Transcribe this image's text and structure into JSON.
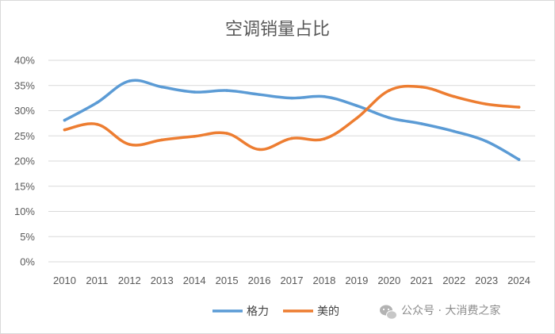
{
  "chart_data": {
    "type": "line",
    "title": "空调销量占比",
    "xlabel": "",
    "ylabel": "",
    "categories": [
      "2010",
      "2011",
      "2012",
      "2013",
      "2014",
      "2015",
      "2016",
      "2017",
      "2018",
      "2019",
      "2020",
      "2021",
      "2022",
      "2023",
      "2024"
    ],
    "ylim": [
      0,
      40
    ],
    "yticks": [
      "0%",
      "5%",
      "10%",
      "15%",
      "20%",
      "25%",
      "30%",
      "35%",
      "40%"
    ],
    "grid": true,
    "legend_position": "bottom",
    "series": [
      {
        "name": "格力",
        "color": "#5b9bd5",
        "values": [
          28.1,
          31.6,
          35.9,
          34.7,
          33.7,
          34.0,
          33.2,
          32.5,
          32.8,
          31.0,
          28.6,
          27.4,
          25.9,
          23.9,
          20.3
        ]
      },
      {
        "name": "美的",
        "color": "#ed7d31",
        "values": [
          26.2,
          27.3,
          23.3,
          24.2,
          24.9,
          25.5,
          22.3,
          24.5,
          24.4,
          28.5,
          34.0,
          34.7,
          32.8,
          31.3,
          30.7
        ]
      }
    ]
  },
  "watermark": {
    "text": "公众号 · 大消费之家",
    "icon": "wechat-icon"
  }
}
